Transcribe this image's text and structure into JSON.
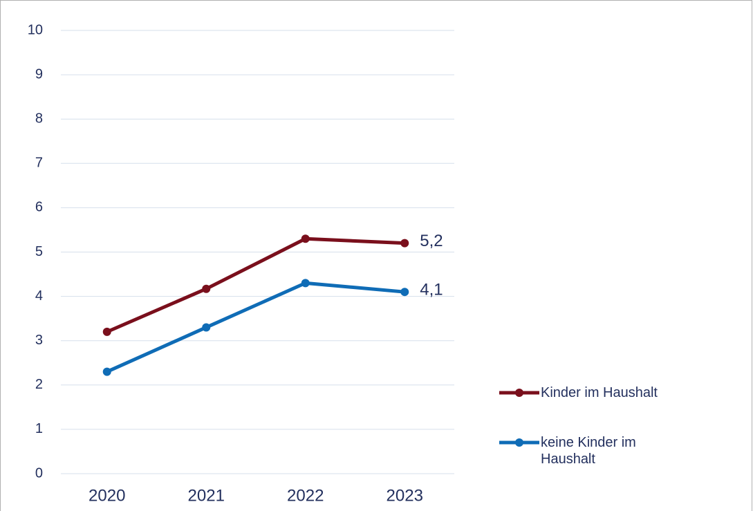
{
  "chart_data": {
    "type": "line",
    "categories": [
      "2020",
      "2021",
      "2022",
      "2023"
    ],
    "series": [
      {
        "name": "Kinder im Haushalt",
        "color": "#7a0f1c",
        "values": [
          3.2,
          4.17,
          5.3,
          5.2
        ],
        "value_labels": [
          null,
          null,
          null,
          "5,2"
        ]
      },
      {
        "name": "keine Kinder im Haushalt",
        "color": "#0f6cb6",
        "values": [
          2.3,
          3.3,
          4.3,
          4.1
        ],
        "value_labels": [
          null,
          null,
          null,
          "4,1"
        ]
      }
    ],
    "ylim": [
      0,
      10
    ],
    "yticks": [
      0,
      1,
      2,
      3,
      4,
      5,
      6,
      7,
      8,
      9,
      10
    ],
    "grid": true,
    "legend": "right"
  }
}
